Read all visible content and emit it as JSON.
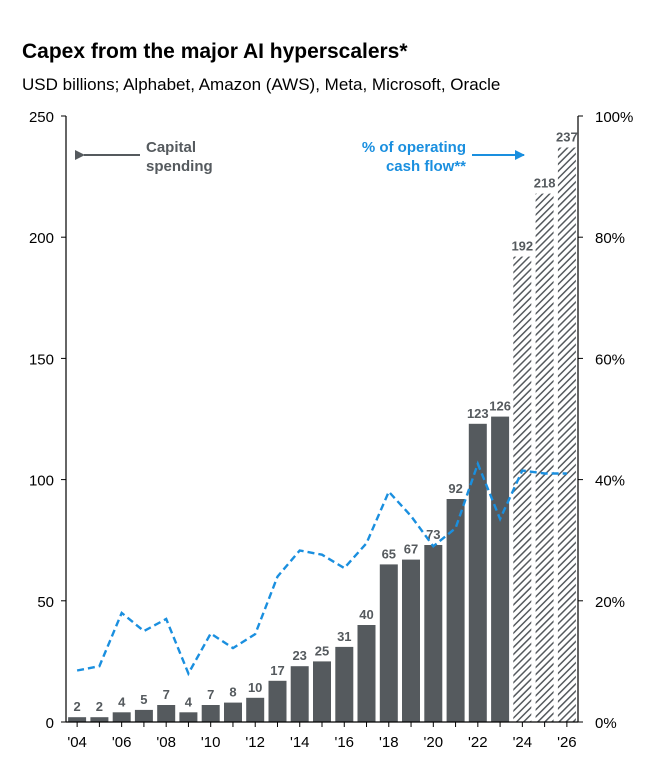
{
  "chart_data": {
    "type": "bar",
    "title": "Capex from the major AI hyperscalers*",
    "subtitle": "USD billions; Alphabet, Amazon (AWS), Meta, Microsoft, Oracle",
    "x_tick_labels": [
      "'04",
      "'06",
      "'08",
      "'10",
      "'12",
      "'14",
      "'16",
      "'18",
      "'20",
      "'22",
      "'24",
      "'26"
    ],
    "years": [
      2004,
      2005,
      2006,
      2007,
      2008,
      2009,
      2010,
      2011,
      2012,
      2013,
      2014,
      2015,
      2016,
      2017,
      2018,
      2019,
      2020,
      2021,
      2022,
      2023,
      2024,
      2025,
      2026
    ],
    "series": [
      {
        "values": [
          2,
          2,
          4,
          5,
          7,
          4,
          7,
          8,
          10,
          17,
          23,
          25,
          31,
          40,
          65,
          67,
          73,
          92,
          123,
          126,
          192,
          218,
          237
        ],
        "data_labels": [
          "2",
          "2",
          "4",
          "5",
          "7",
          "4",
          "7",
          "8",
          "10",
          "17",
          "23",
          "25",
          "31",
          "40",
          "65",
          "67",
          "73",
          "92",
          "123",
          "126",
          "192",
          "218",
          "237"
        ],
        "estimated_from_year": 2024,
        "axis": "left",
        "color": "#555a5e"
      },
      {
        "values": [
          8.5,
          9.2,
          18.0,
          15.0,
          17.0,
          8.0,
          14.6,
          12.2,
          14.5,
          24.0,
          28.3,
          27.6,
          25.4,
          29.5,
          38.0,
          34.0,
          29.0,
          32.0,
          42.6,
          33.5,
          41.5,
          41.0,
          41.0
        ],
        "axis": "right",
        "style": "dashed",
        "color": "#1a8fdf"
      }
    ],
    "y_left": {
      "ylim": [
        0,
        250
      ],
      "ticks": [
        "0",
        "50",
        "100",
        "150",
        "200",
        "250"
      ]
    },
    "y_right": {
      "ylim": [
        0,
        100
      ],
      "ticks": [
        "0%",
        "20%",
        "40%",
        "60%",
        "80%",
        "100%"
      ]
    },
    "annotations": {
      "left_label_line1": "Capital",
      "left_label_line2": "spending",
      "right_label_line1": "% of operating",
      "right_label_line2": "cash flow**",
      "left_label_color": "#555a5e",
      "right_label_color": "#1a8fdf"
    },
    "grid": false
  }
}
